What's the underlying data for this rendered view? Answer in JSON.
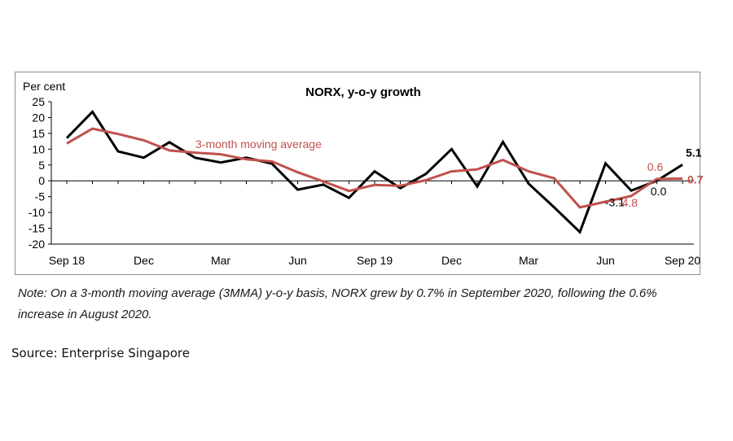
{
  "chart_data": {
    "type": "line",
    "title": "NORX, y-o-y growth",
    "ylabel": "Per cent",
    "ylim": [
      -20,
      25
    ],
    "yticks": [
      25,
      20,
      15,
      10,
      5,
      0,
      -5,
      -10,
      -15,
      -20
    ],
    "x": [
      "Sep 18",
      "Oct 18",
      "Nov 18",
      "Dec 18",
      "Jan 19",
      "Feb 19",
      "Mar 19",
      "Apr 19",
      "May 19",
      "Jun 19",
      "Jul 19",
      "Aug 19",
      "Sep 19",
      "Oct 19",
      "Nov 19",
      "Dec 19",
      "Jan 20",
      "Feb 20",
      "Mar 20",
      "Apr 20",
      "May 20",
      "Jun 20",
      "Jul 20",
      "Aug 20",
      "Sep 20"
    ],
    "xtick_labels": [
      "Sep 18",
      "Dec",
      "Mar",
      "Jun",
      "Sep 19",
      "Dec",
      "Mar",
      "Jun",
      "Sep 20"
    ],
    "xtick_indices": [
      0,
      3,
      6,
      9,
      12,
      15,
      18,
      21,
      24
    ],
    "series": [
      {
        "name": "",
        "color": "#000000",
        "values": [
          13.5,
          21.8,
          9.3,
          7.3,
          12.2,
          7.3,
          5.8,
          7.3,
          5.4,
          -2.8,
          -1.2,
          -5.4,
          3.0,
          -2.3,
          2.2,
          10.0,
          -1.8,
          12.3,
          -0.9,
          -8.4,
          -16.2,
          5.5,
          -3.1,
          0.0,
          5.1
        ]
      },
      {
        "name": "3-month moving average",
        "color": "#c0504d",
        "values": [
          11.8,
          16.5,
          14.8,
          12.8,
          9.6,
          8.9,
          8.4,
          6.8,
          6.1,
          2.7,
          -0.2,
          -3.2,
          -1.3,
          -1.6,
          0.2,
          3.0,
          3.6,
          6.6,
          3.0,
          0.8,
          -8.4,
          -6.6,
          -4.8,
          0.6,
          0.7
        ]
      }
    ],
    "annotations": [
      {
        "text": "-3.1",
        "series": 0,
        "index": 22
      },
      {
        "text": "0.0",
        "series": 0,
        "index": 23
      },
      {
        "text": "5.1",
        "series": 0,
        "index": 24
      },
      {
        "text": "-4.8",
        "series": 1,
        "index": 22
      },
      {
        "text": "0.6",
        "series": 1,
        "index": 23
      },
      {
        "text": "0.7",
        "series": 1,
        "index": 24
      }
    ],
    "grid": false,
    "legend": "inline label"
  },
  "note": {
    "line1": "Note: On a 3-month moving average (3MMA) y-o-y basis, NORX grew by 0.7% in September 2020, following the 0.6%",
    "line2": "increase in August 2020."
  },
  "source": "Source: Enterprise Singapore"
}
